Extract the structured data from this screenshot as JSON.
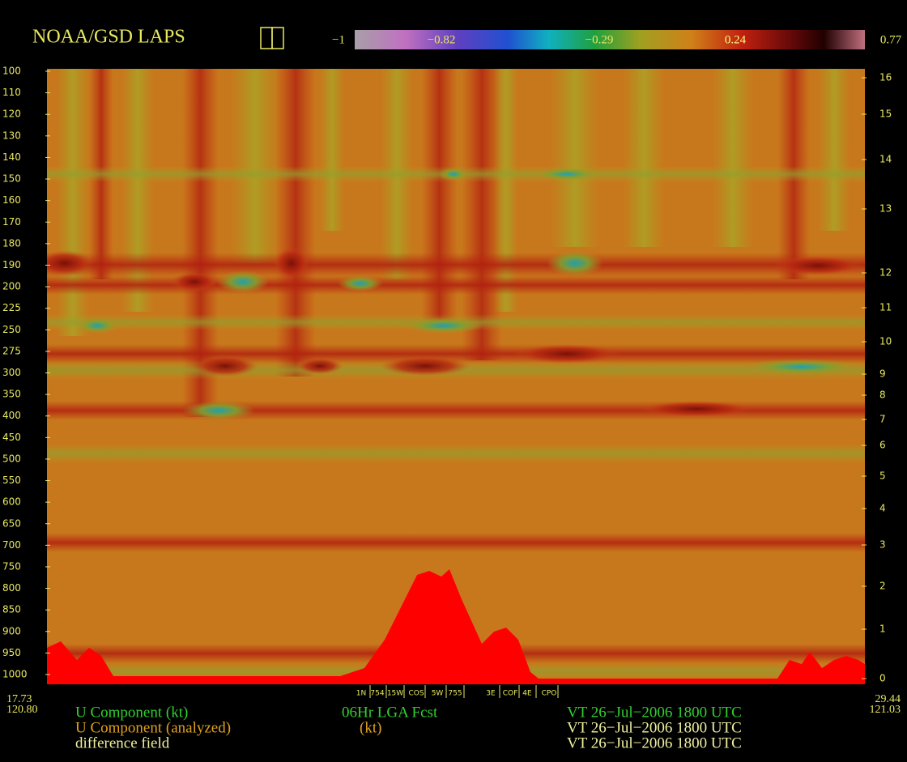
{
  "header": {
    "title": "NOAA/GSD LAPS"
  },
  "chart_data": {
    "type": "cross-section",
    "colorbar_ticks": [
      {
        "value": -1,
        "label": "−1"
      },
      {
        "value": -0.82,
        "label": "−0.82"
      },
      {
        "value": -0.29,
        "label": "−0.29"
      },
      {
        "value": 0.24,
        "label": "0.24"
      },
      {
        "value": 0.77,
        "label": "0.77"
      }
    ],
    "pressure_ticks": [
      100,
      110,
      120,
      130,
      140,
      150,
      160,
      170,
      180,
      190,
      200,
      225,
      250,
      275,
      300,
      350,
      400,
      450,
      500,
      550,
      600,
      650,
      700,
      750,
      800,
      850,
      900,
      950,
      1000
    ],
    "height_ticks": [
      16,
      15,
      14,
      13,
      12,
      11,
      10,
      9,
      8,
      7,
      6,
      5,
      4,
      3,
      2,
      1,
      0
    ],
    "start": {
      "lat": "17.73",
      "lon": "120.80"
    },
    "end": {
      "lat": "29.44",
      "lon": "121.03"
    },
    "stations": [
      "1N",
      "754",
      "15W",
      "COS",
      "5W",
      "755",
      "3E",
      "COF",
      "4E",
      "CPO"
    ]
  },
  "footer": {
    "rows": [
      [
        "U Component (kt)",
        "06Hr LGA Fcst",
        "VT 26−Jul−2006 1800 UTC"
      ],
      [
        "U Component (analyzed)",
        "(kt)",
        "VT 26−Jul−2006 1800 UTC"
      ],
      [
        "difference field",
        "VT 26−Jul−2006 1800 UTC"
      ]
    ]
  }
}
